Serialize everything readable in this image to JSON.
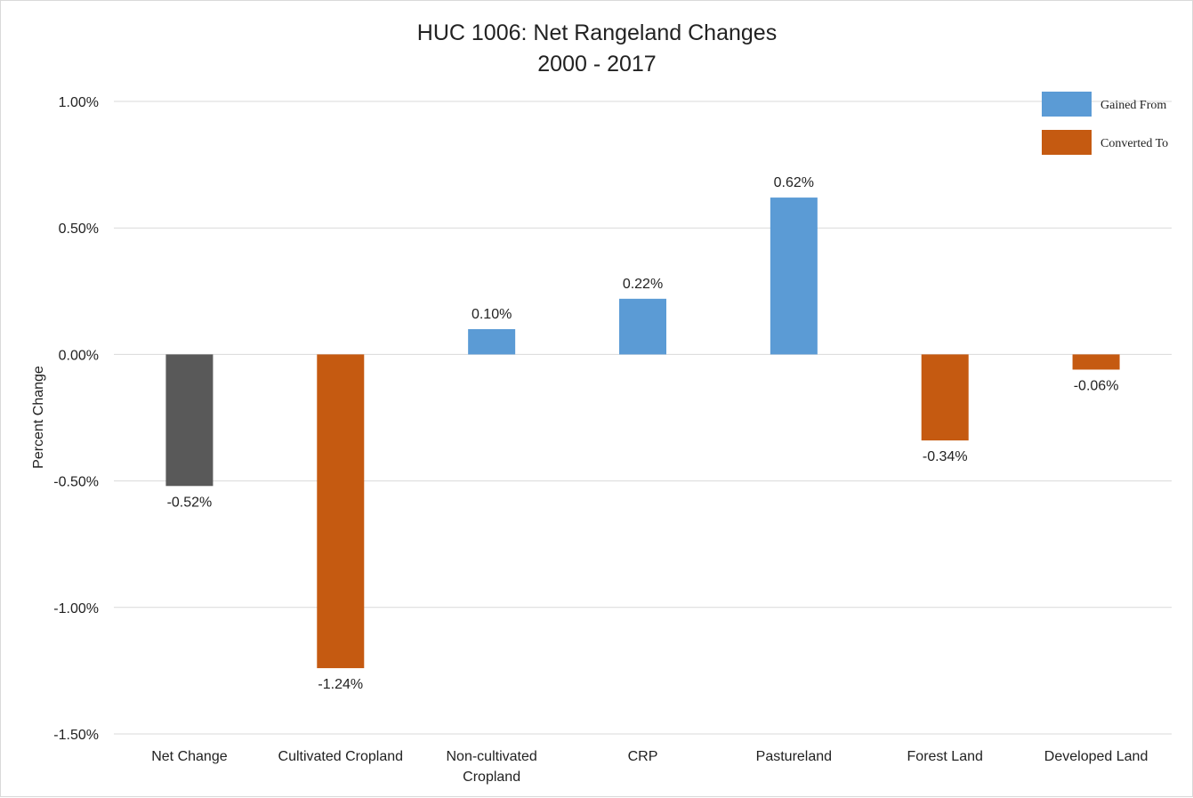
{
  "chart_data": {
    "type": "bar",
    "title": [
      "HUC 1006: Net Rangeland Changes",
      "2000 - 2017"
    ],
    "ylabel": "Percent Change",
    "xlabel": "",
    "ylim": [
      -1.5,
      1.0
    ],
    "yticks": [
      1.0,
      0.5,
      0.0,
      -0.5,
      -1.0,
      -1.5
    ],
    "ytick_labels": [
      "1.00%",
      "0.50%",
      "0.00%",
      "-0.50%",
      "-1.00%",
      "-1.50%"
    ],
    "grid": true,
    "legend_position": "top-right",
    "categories": [
      [
        "Net Change"
      ],
      [
        "Cultivated Cropland"
      ],
      [
        "Non-cultivated",
        "Cropland"
      ],
      [
        "CRP"
      ],
      [
        "Pastureland"
      ],
      [
        "Forest Land"
      ],
      [
        "Developed Land"
      ]
    ],
    "values": [
      -0.52,
      -1.24,
      0.1,
      0.22,
      0.62,
      -0.34,
      -0.06
    ],
    "data_labels": [
      "-0.52%",
      "-1.24%",
      "0.10%",
      "0.22%",
      "0.62%",
      "-0.34%",
      "-0.06%"
    ],
    "bar_groups": [
      "net",
      "converted",
      "gained",
      "gained",
      "gained",
      "converted",
      "converted"
    ],
    "legend": [
      {
        "group": "gained",
        "label": "Gained From",
        "color": "#5b9bd5"
      },
      {
        "group": "converted",
        "label": "Converted To",
        "color": "#c55a11"
      }
    ],
    "colors": {
      "net": "#595959",
      "gained": "#5b9bd5",
      "converted": "#c55a11",
      "grid": "#d9d9d9"
    }
  }
}
